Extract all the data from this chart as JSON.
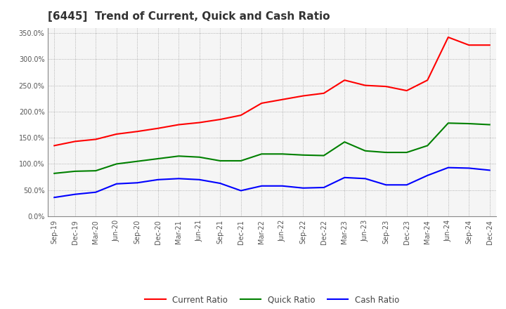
{
  "title": "[6445]  Trend of Current, Quick and Cash Ratio",
  "x_labels": [
    "Sep-19",
    "Dec-19",
    "Mar-20",
    "Jun-20",
    "Sep-20",
    "Dec-20",
    "Mar-21",
    "Jun-21",
    "Sep-21",
    "Dec-21",
    "Mar-22",
    "Jun-22",
    "Sep-22",
    "Dec-22",
    "Mar-23",
    "Jun-23",
    "Sep-23",
    "Dec-23",
    "Mar-24",
    "Jun-24",
    "Sep-24",
    "Dec-24"
  ],
  "current_ratio": [
    1.35,
    1.43,
    1.47,
    1.57,
    1.62,
    1.68,
    1.75,
    1.79,
    1.85,
    1.93,
    2.16,
    2.23,
    2.3,
    2.35,
    2.6,
    2.5,
    2.48,
    2.4,
    2.6,
    3.42,
    3.27,
    3.27
  ],
  "quick_ratio": [
    0.82,
    0.86,
    0.87,
    1.0,
    1.05,
    1.1,
    1.15,
    1.13,
    1.06,
    1.06,
    1.19,
    1.19,
    1.17,
    1.16,
    1.42,
    1.25,
    1.22,
    1.22,
    1.35,
    1.78,
    1.77,
    1.75
  ],
  "cash_ratio": [
    0.36,
    0.42,
    0.46,
    0.62,
    0.64,
    0.7,
    0.72,
    0.7,
    0.63,
    0.49,
    0.58,
    0.58,
    0.54,
    0.55,
    0.74,
    0.72,
    0.6,
    0.6,
    0.78,
    0.93,
    0.92,
    0.88
  ],
  "current_color": "#FF0000",
  "quick_color": "#008000",
  "cash_color": "#0000FF",
  "legend_labels": [
    "Current Ratio",
    "Quick Ratio",
    "Cash Ratio"
  ],
  "bg_color": "#FFFFFF",
  "plot_bg_color": "#F5F5F5",
  "grid_color": "#888888",
  "ylim_max": 3.6,
  "ytick_vals": [
    0.0,
    0.5,
    1.0,
    1.5,
    2.0,
    2.5,
    3.0,
    3.5
  ],
  "title_fontsize": 11,
  "tick_fontsize": 7,
  "legend_fontsize": 8.5,
  "linewidth": 1.5
}
